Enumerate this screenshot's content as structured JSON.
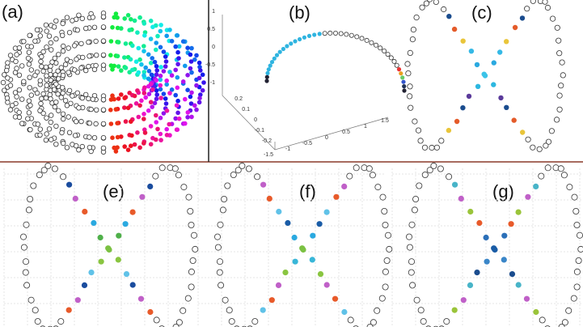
{
  "panels": [
    {
      "label": "(a)"
    },
    {
      "label": "(b)",
      "z_ticks": [
        "1",
        "0.5",
        "0",
        "-0.5",
        "-1"
      ],
      "y_ticks": [
        "0.2",
        "0.1",
        "0",
        "-0.1",
        "-0.2"
      ],
      "x_ticks": [
        "-1.5",
        "-1",
        "-0.5",
        "0",
        "0.5",
        "1",
        "1.5"
      ]
    },
    {
      "label": "(c)"
    },
    {
      "label": "(e)"
    },
    {
      "label": "(f)"
    },
    {
      "label": "(g)"
    }
  ]
}
